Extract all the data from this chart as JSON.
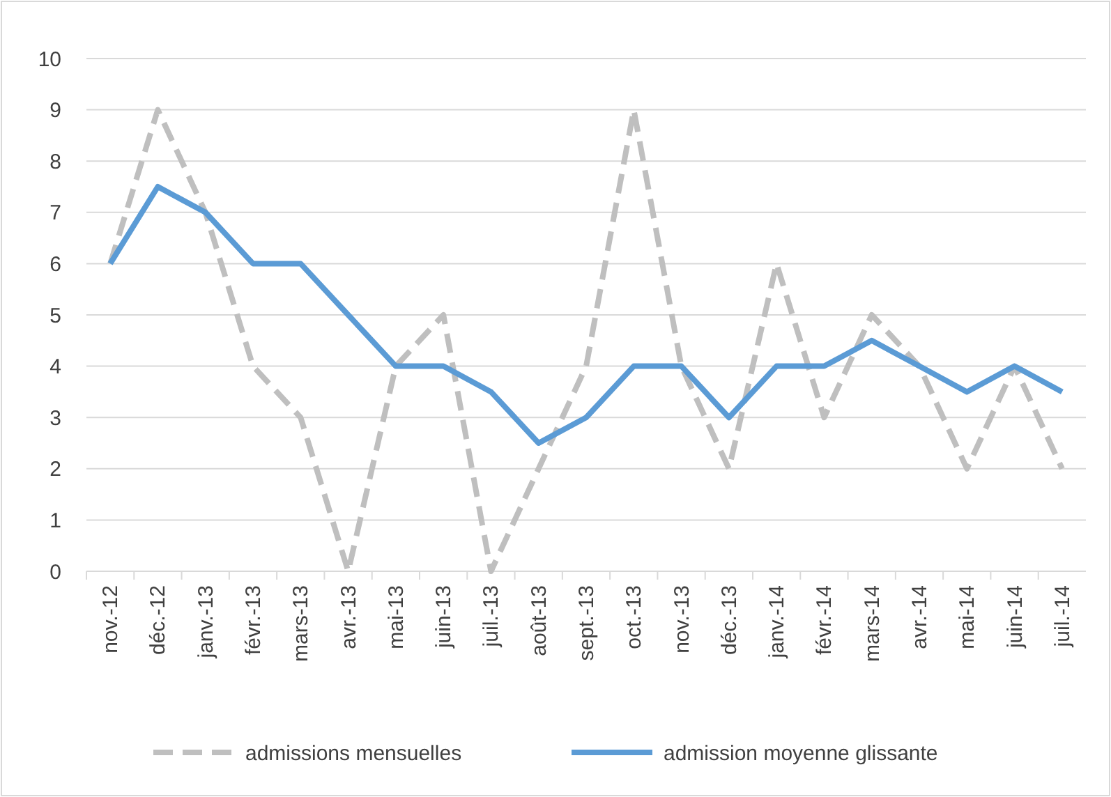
{
  "chart_data": {
    "type": "line",
    "categories": [
      "nov.-12",
      "déc.-12",
      "janv.-13",
      "févr.-13",
      "mars-13",
      "avr.-13",
      "mai-13",
      "juin-13",
      "juil.-13",
      "août-13",
      "sept.-13",
      "oct.-13",
      "nov.-13",
      "déc.-13",
      "janv.-14",
      "févr.-14",
      "mars-14",
      "avr.-14",
      "mai-14",
      "juin-14",
      "juil.-14"
    ],
    "series": [
      {
        "name": "admissions mensuelles",
        "color": "#bfbfbf",
        "line_style": "dashed",
        "values": [
          6,
          9,
          7,
          4,
          3,
          0,
          4,
          5,
          0,
          2,
          4,
          9,
          4,
          2,
          6,
          3,
          5,
          4,
          2,
          4,
          2
        ]
      },
      {
        "name": "admission moyenne glissante",
        "color": "#5b9bd5",
        "line_style": "solid",
        "values": [
          6,
          7.5,
          7,
          6,
          6,
          5,
          4,
          4,
          3.5,
          2.5,
          3,
          4,
          4,
          3,
          4,
          4,
          4.5,
          4,
          3.5,
          4,
          3.5
        ]
      }
    ],
    "ylim": [
      0,
      10
    ],
    "yticks": [
      0,
      1,
      2,
      3,
      4,
      5,
      6,
      7,
      8,
      9,
      10
    ],
    "grid": "y",
    "legend": "bottom",
    "marker": "none"
  }
}
